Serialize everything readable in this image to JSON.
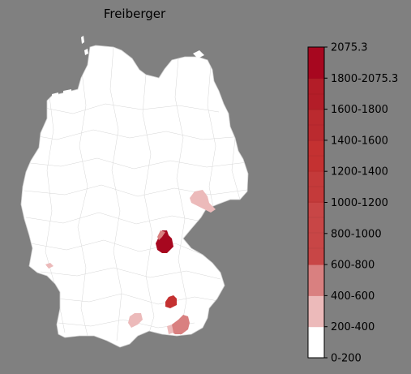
{
  "title": "Freiberger",
  "map": {
    "region": "Germany (districts)",
    "base_color": "#ffffff",
    "border_color": "#c8c8c8",
    "highlighted_regions": [
      {
        "name": "Saxony (Dresden area)",
        "bin": "200-400",
        "color": "#ecbaba"
      },
      {
        "name": "Upper Franconia (Bayreuth area)",
        "bin": "1800-2075.3",
        "color": "#a7071f"
      },
      {
        "name": "Lower Bavaria (Landshut area)",
        "bin": "1200-1400",
        "color": "#c43131"
      },
      {
        "name": "Upper Bavaria (Rosenheim area)",
        "bin": "400-600",
        "color": "#d98080"
      },
      {
        "name": "Swabia (Memmingen area)",
        "bin": "200-400",
        "color": "#ecbaba"
      },
      {
        "name": "Saarland",
        "bin": "200-400",
        "color": "#ecbaba"
      }
    ]
  },
  "legend": {
    "top_value": "2075.3",
    "bins": [
      {
        "label": "0-200",
        "color": "#ffffff"
      },
      {
        "label": "200-400",
        "color": "#ecbaba"
      },
      {
        "label": "400-600",
        "color": "#d98080"
      },
      {
        "label": "600-800",
        "color": "#c84646"
      },
      {
        "label": "800-1000",
        "color": "#c84646"
      },
      {
        "label": "1000-1200",
        "color": "#c43a3a"
      },
      {
        "label": "1200-1400",
        "color": "#c43131"
      },
      {
        "label": "1400-1600",
        "color": "#bb2a2f"
      },
      {
        "label": "1600-1800",
        "color": "#b31d28"
      },
      {
        "label": "1800-2075.3",
        "color": "#a7071f"
      }
    ],
    "tick_labels": [
      "2075.3",
      "1800-2075.3",
      "1600-1800",
      "1400-1600",
      "1200-1400",
      "1000-1200",
      "800-1000",
      "600-800",
      "400-600",
      "200-400",
      "0-200"
    ]
  }
}
